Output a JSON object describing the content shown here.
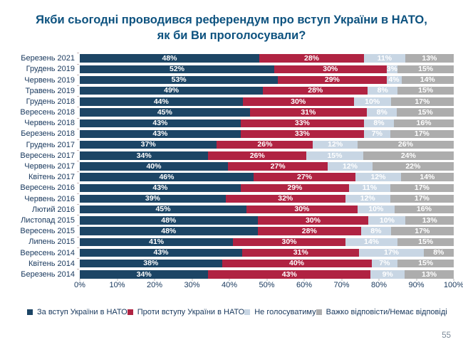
{
  "header": {
    "title_line1": "Якби сьогодні проводився референдум про вступ України в НАТО,",
    "title_line2": "як би Ви проголосували?"
  },
  "page_number": "55",
  "colors": {
    "for_nato": "#1c4565",
    "against_nato": "#b02342",
    "not_voting": "#c8d6e4",
    "hard_to_answer": "#adadad",
    "title_text": "#0d527f",
    "axis_text": "#17375c"
  },
  "chart_data": {
    "type": "bar",
    "stacked": true,
    "orientation": "horizontal",
    "title": "Якби сьогодні проводився референдум про вступ України в НАТО, як би Ви проголосували?",
    "categories": [
      "Березень 2021",
      "Грудень 2019",
      "Червень 2019",
      "Травень 2019",
      "Грудень 2018",
      "Вересень 2018",
      "Червень 2018",
      "Березень 2018",
      "Грудень 2017",
      "Вересень 2017",
      "Червень 2017",
      "Квітень 2017",
      "Вересень 2016",
      "Червень 2016",
      "Лютий 2016",
      "Листопад 2015",
      "Вересень 2015",
      "Липень 2015",
      "Вересень 2014",
      "Квітень 2014",
      "Березень 2014"
    ],
    "series": [
      {
        "name": "За вступ України в НАТО",
        "color": "#1c4565",
        "values": [
          48,
          52,
          53,
          49,
          44,
          45,
          43,
          43,
          37,
          34,
          40,
          46,
          43,
          39,
          45,
          48,
          48,
          41,
          43,
          38,
          34
        ]
      },
      {
        "name": "Проти вступу України в НАТО",
        "color": "#b02342",
        "values": [
          28,
          30,
          29,
          28,
          30,
          31,
          33,
          33,
          26,
          26,
          27,
          27,
          29,
          32,
          30,
          30,
          28,
          30,
          31,
          40,
          43
        ]
      },
      {
        "name": "Не голосуватиму",
        "color": "#c8d6e4",
        "values": [
          11,
          3,
          4,
          8,
          10,
          8,
          8,
          7,
          12,
          15,
          12,
          12,
          11,
          12,
          10,
          10,
          8,
          14,
          17,
          7,
          9
        ]
      },
      {
        "name": "Важко відповісти/Немає відповіді",
        "color": "#adadad",
        "values": [
          13,
          15,
          14,
          15,
          17,
          15,
          16,
          17,
          26,
          24,
          22,
          14,
          17,
          17,
          16,
          13,
          17,
          15,
          8,
          15,
          13
        ]
      }
    ],
    "value_suffix": "%",
    "x_ticks": [
      "0%",
      "10%",
      "20%",
      "30%",
      "40%",
      "50%",
      "60%",
      "70%",
      "80%",
      "90%",
      "100%"
    ],
    "xlim": [
      0,
      100
    ],
    "grid": false,
    "legend_position": "bottom"
  }
}
